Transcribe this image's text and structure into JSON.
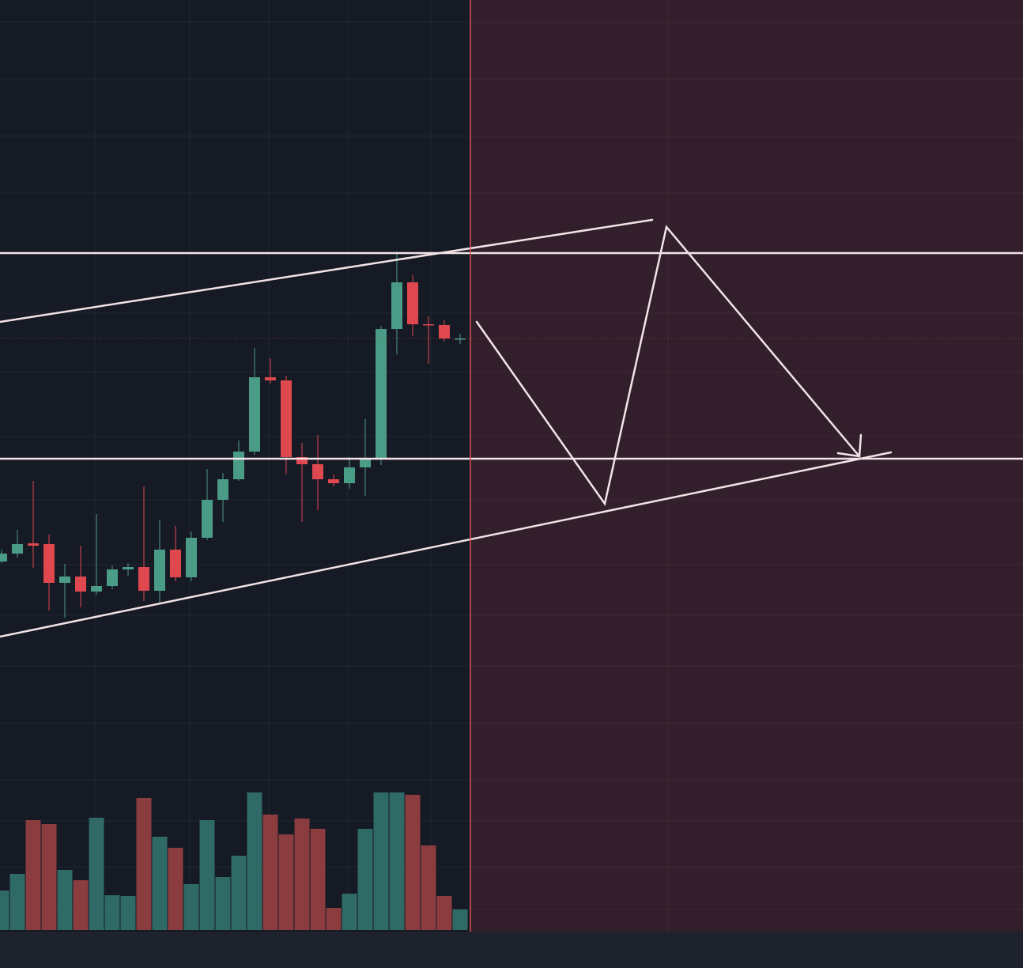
{
  "chart_data": {
    "type": "candlestick",
    "open": [
      470,
      480,
      493,
      492,
      443,
      451,
      432,
      439,
      460,
      463,
      433,
      485,
      450,
      500,
      548,
      574,
      609,
      703,
      699,
      602,
      593,
      574,
      569,
      589,
      601,
      764,
      823,
      770,
      769,
      752
    ],
    "high": [
      485,
      510,
      572,
      504,
      467,
      490,
      530,
      465,
      468,
      565,
      523,
      515,
      508,
      587,
      582,
      623,
      740,
      727,
      705,
      620,
      630,
      580,
      602,
      650,
      768,
      862,
      832,
      780,
      775,
      758
    ],
    "low": [
      468,
      475,
      462,
      408,
      399,
      412,
      428,
      435,
      452,
      420,
      418,
      445,
      445,
      497,
      520,
      572,
      605,
      695,
      580,
      520,
      535,
      565,
      562,
      553,
      592,
      732,
      755,
      720,
      748,
      745
    ],
    "close": [
      480,
      492,
      490,
      443,
      451,
      432,
      439,
      460,
      463,
      433,
      485,
      450,
      500,
      548,
      574,
      609,
      703,
      699,
      602,
      593,
      574,
      569,
      589,
      601,
      764,
      823,
      770,
      769,
      752,
      752
    ],
    "volume": [
      50,
      71,
      139,
      134,
      76,
      63,
      142,
      44,
      43,
      167,
      118,
      104,
      58,
      139,
      67,
      94,
      174,
      146,
      121,
      141,
      128,
      28,
      46,
      128,
      174,
      174,
      171,
      107,
      43,
      26
    ],
    "ylim": [
      0,
      1180
    ],
    "up_color": "#4a9c86",
    "down_color": "#e0484f",
    "volume_up_color": "#2f6a66",
    "volume_down_color": "#8a3c3e"
  }
}
